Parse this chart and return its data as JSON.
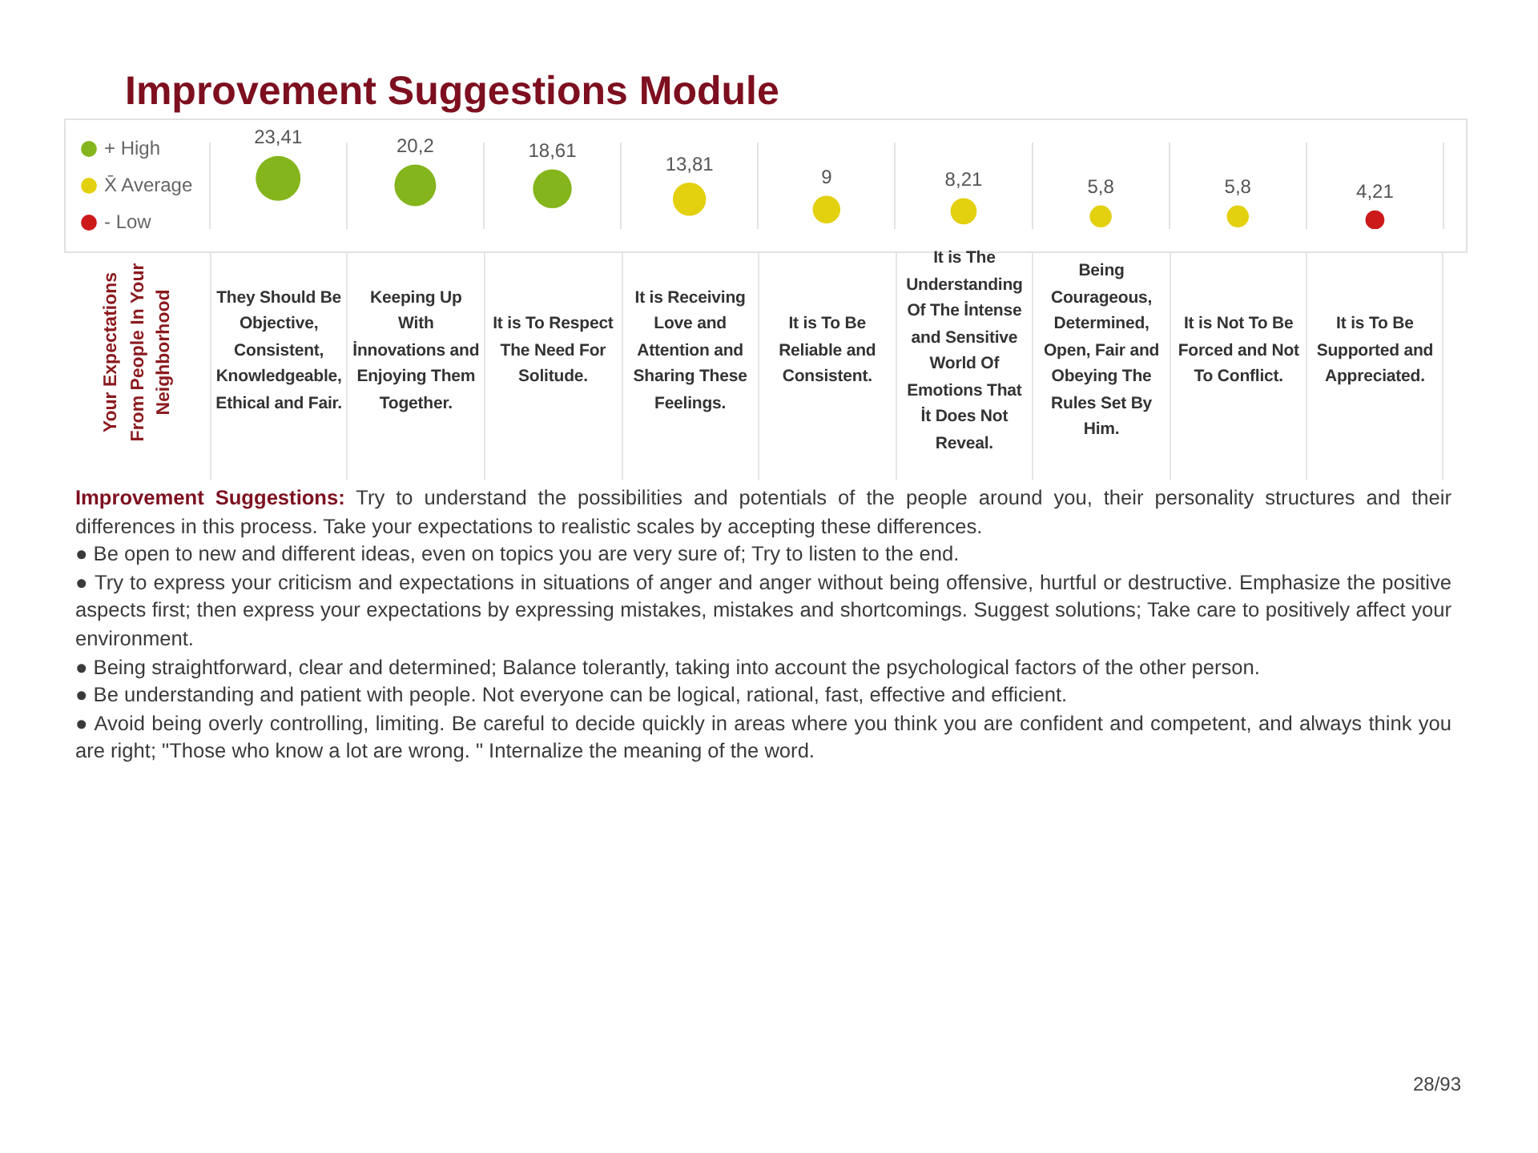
{
  "chart_data": {
    "type": "bubble",
    "title": "Improvement Suggestions Module",
    "ylabel": "Your Expectations From People In Your Neighborhood",
    "categories": [
      "They Should Be Objective, Consistent, Knowledgeable, Ethical and Fair.",
      "Keeping Up With İnnovations and Enjoying Them Together.",
      "It is To Respect The Need For Solitude.",
      "It is Receiving Love and Attention and Sharing These Feelings.",
      "It is To Be Reliable and Consistent.",
      "It is The Understanding Of The İntense and Sensitive World Of Emotions That İt Does Not Reveal.",
      "Being Courageous, Determined, Open, Fair and Obeying The Rules Set By Him.",
      "It is Not To Be Forced and Not To Conflict.",
      "It is To Be Supported and Appreciated."
    ],
    "series": [
      {
        "name": "+ High",
        "color": "#84b51c",
        "values": [
          23.41,
          20.2,
          18.61,
          null,
          null,
          null,
          null,
          null,
          null
        ],
        "sizes": [
          1,
          0.86,
          0.75,
          null,
          null,
          null,
          null,
          null,
          null
        ],
        "value_labels": [
          "23,41",
          "20,2",
          "18,61",
          null,
          null,
          null,
          null,
          null,
          null
        ]
      },
      {
        "name": "X̄ Average",
        "color": "#e3d00e",
        "values": [
          null,
          null,
          null,
          13.81,
          9,
          8.21,
          5.8,
          5.8,
          null
        ],
        "sizes": [
          null,
          null,
          null,
          0.55,
          0.38,
          0.34,
          0.24,
          0.24,
          null
        ],
        "value_labels": [
          null,
          null,
          null,
          "13,81",
          "9",
          "8,21",
          "5,8",
          "5,8",
          null
        ]
      },
      {
        "name": "- Low",
        "color": "#cc1a1a",
        "values": [
          null,
          null,
          null,
          null,
          null,
          null,
          null,
          null,
          4.21
        ],
        "sizes": [
          null,
          null,
          null,
          null,
          null,
          null,
          null,
          null,
          0.18
        ],
        "value_labels": [
          null,
          null,
          null,
          null,
          null,
          null,
          null,
          null,
          "4,21"
        ]
      }
    ],
    "ylim": [
      0,
      40
    ],
    "grid": "x",
    "legend": "left",
    "tick_labels": "x",
    "annotations": [
      "Improvement Suggestions:",
      "Try to understand the possibilities and potentials of the people around you, their personality structures and their differences in this process. Take your expectations to realistic scales by accepting these differences.",
      "● Be open to new and different ideas, even on topics you are very sure of; Try to listen to the end.",
      "● Try to express your criticism and expectations in situations of anger and anger without being offensive, hurtful or destructive. Emphasize the positive aspects first; then express your expectations by expressing mistakes, mistakes and shortcomings. Suggest solutions; Take care to positively affect your environment.",
      "● Being straightforward, clear and determined; Balance tolerantly, taking into account the psychological factors of the other person.",
      "● Be understanding and patient with people. Not everyone can be logical, rational, fast, effective and efficient.",
      "● Avoid being overly controlling, limiting. Be careful to decide quickly in areas where you think you are confident and competent, and always think you are right; \"Those who know a lot are wrong. \" Internalize the meaning of the word.",
      "28/93"
    ]
  }
}
